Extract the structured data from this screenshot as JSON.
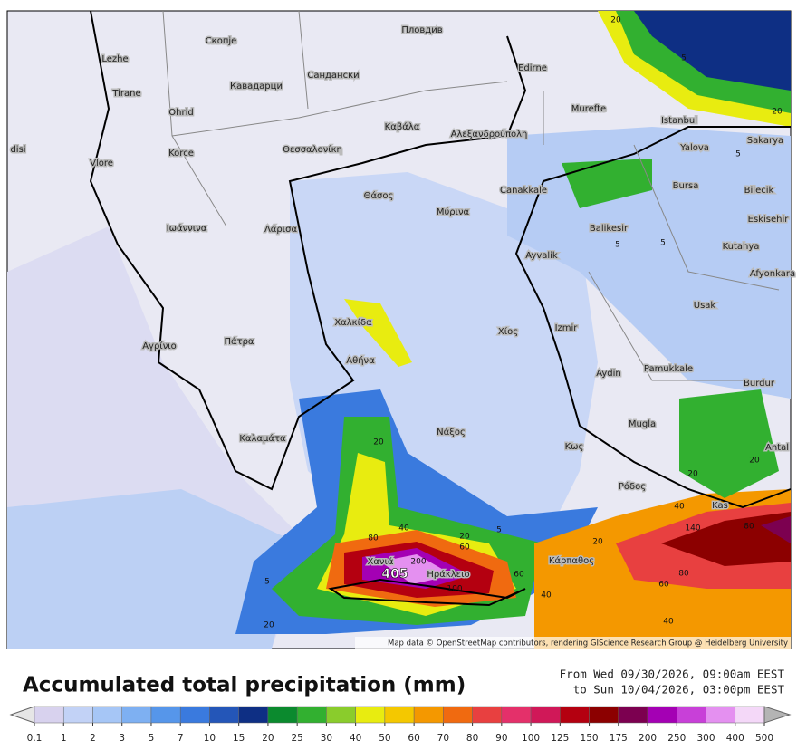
{
  "map": {
    "places": [
      "Скопје",
      "Пловдив",
      "Lezhe",
      "Tirane",
      "Кавадарци",
      "Сандански",
      "Edirne",
      "Ohrid",
      "Καβάλα",
      "Αλεξανδρούπολη",
      "Murefte",
      "Istanbul",
      "Sakarya",
      "Yalova",
      "disi",
      "Korce",
      "Θεσσαλονίκη",
      "Vlore",
      "Bursa",
      "Bilecik",
      "Canakkale",
      "Θάσος",
      "Μύρινα",
      "Eskisehir",
      "Balikesir",
      "Ιωάννινα",
      "Λάρισα",
      "Kutahya",
      "Ayvalik",
      "Afyonkara",
      "Usak",
      "Χαλκίδα",
      "Izmir",
      "Χίος",
      "Αγρίνιο",
      "Πάτρα",
      "Αθήνα",
      "Aydin",
      "Pamukkale",
      "Burdur",
      "Mugla",
      "Νάξος",
      "Καλαμάτα",
      "Κως",
      "Antal",
      "Ρόδος",
      "Kas",
      "Χανιά",
      "Ηράκλειο",
      "Κάρπαθος"
    ],
    "contour_labels": [
      20,
      5,
      20,
      5,
      5,
      5,
      20,
      40,
      20,
      5,
      60,
      80,
      60,
      40,
      20,
      40,
      140,
      80,
      80,
      60,
      40,
      5,
      20,
      20,
      20,
      100,
      200
    ],
    "max_label": 405,
    "attribution": "Map data © OpenStreetMap contributors, rendering GIScience Research Group @ Heidelberg University"
  },
  "legend": {
    "title": "Accumulated total precipitation (mm)",
    "period": [
      "From Wed 09/30/2026, 09:00am EEST",
      "to Sun 10/04/2026, 03:00pm EEST"
    ],
    "ticks": [
      0.1,
      1,
      2,
      3,
      5,
      7,
      10,
      15,
      20,
      25,
      30,
      40,
      50,
      60,
      70,
      80,
      90,
      100,
      125,
      150,
      175,
      200,
      250,
      300,
      400,
      500
    ],
    "colors": [
      "#e6e6e6",
      "#d8d2ee",
      "#c2d2f6",
      "#a6c6f6",
      "#7eb0f2",
      "#5696ea",
      "#3a7ade",
      "#2456b8",
      "#0e2f84",
      "#0b8a2e",
      "#32b030",
      "#8acc2c",
      "#e8ec10",
      "#f4c800",
      "#f49800",
      "#f06a10",
      "#e84040",
      "#e4306a",
      "#d01858",
      "#b40010",
      "#8c0000",
      "#7c0050",
      "#a400b4",
      "#c840d8",
      "#e490f0",
      "#f4d8f8",
      "#b4b4b4"
    ]
  }
}
